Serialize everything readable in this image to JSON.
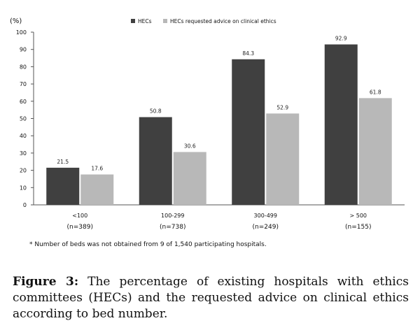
{
  "chart_data": {
    "type": "bar",
    "unit_label": "(%)",
    "categories": [
      "<100",
      "100-299",
      "300-499",
      "> 500"
    ],
    "category_counts": [
      "(n=389)",
      "(n=738)",
      "(n=249)",
      "(n=155)"
    ],
    "series": [
      {
        "name": "HECs",
        "values": [
          21.5,
          50.8,
          84.3,
          92.9
        ],
        "color": "#404040"
      },
      {
        "name": "HECs requested advice on clinical ethics",
        "values": [
          17.6,
          30.6,
          52.9,
          61.8
        ],
        "color": "#b8b8b8"
      }
    ],
    "data_labels": [
      [
        "21.5",
        "50.8",
        "84.3",
        "92.9"
      ],
      [
        "17.6",
        "30.6",
        "52.9",
        "61.8"
      ]
    ],
    "ylim": [
      0,
      100
    ],
    "yticks": [
      0,
      10,
      20,
      30,
      40,
      50,
      60,
      70,
      80,
      90,
      100
    ],
    "grid": false,
    "legend_position": "top"
  },
  "footnote": "* Number of beds was not obtained from 9 of 1,540 participating hospitals.",
  "caption": {
    "label": "Figure 3:",
    "text": " The percentage of existing hospitals with ethics committees (HECs) and the requested advice on clinical ethics according to bed number."
  }
}
